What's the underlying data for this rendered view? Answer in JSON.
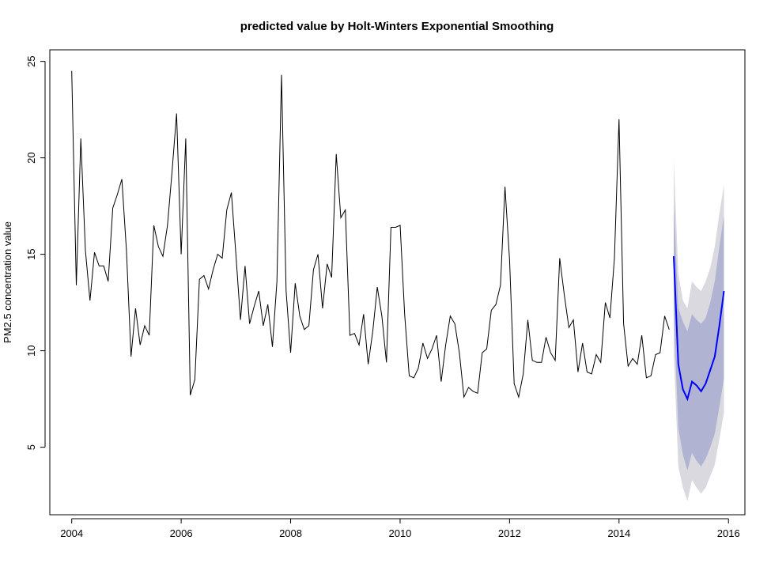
{
  "chart_data": {
    "type": "line",
    "title": "predicted value by Holt-Winters Exponential Smoothing",
    "xlabel": "",
    "ylabel": "PM2.5 concentration value",
    "xlim": [
      2003.6,
      2016.3
    ],
    "ylim": [
      1.5,
      25.6
    ],
    "x_ticks": [
      2004,
      2006,
      2008,
      2010,
      2012,
      2014,
      2016
    ],
    "y_ticks": [
      5,
      10,
      15,
      20,
      25
    ],
    "grid": false,
    "legend": "none",
    "colors": {
      "observed": "#000000",
      "forecast": "#0000ff",
      "band80": "#b0b3d1",
      "band95": "#d9d9df"
    },
    "observed": {
      "start": 2004,
      "frequency": 12,
      "values": [
        24.5,
        13.4,
        21.0,
        15.2,
        12.6,
        15.1,
        14.4,
        14.4,
        13.6,
        17.4,
        18.1,
        18.9,
        15.2,
        9.7,
        12.2,
        10.3,
        11.3,
        10.8,
        16.5,
        15.4,
        14.9,
        16.5,
        19.3,
        22.3,
        15.0,
        21.0,
        7.7,
        8.5,
        13.7,
        13.9,
        13.2,
        14.2,
        15.0,
        14.8,
        17.3,
        18.2,
        15.0,
        11.6,
        14.4,
        11.4,
        12.3,
        13.1,
        11.3,
        12.4,
        10.2,
        13.6,
        24.3,
        13.1,
        9.9,
        13.5,
        11.8,
        11.1,
        11.3,
        14.2,
        15.0,
        12.2,
        14.5,
        13.8,
        20.2,
        16.9,
        17.3,
        10.8,
        10.9,
        10.3,
        11.9,
        9.3,
        11.0,
        13.3,
        11.8,
        9.4,
        16.4,
        16.4,
        16.5,
        11.9,
        8.7,
        8.6,
        9.1,
        10.4,
        9.6,
        10.1,
        10.8,
        8.4,
        10.3,
        11.8,
        11.4,
        9.9,
        7.6,
        8.1,
        7.9,
        7.8,
        9.9,
        10.1,
        12.1,
        12.4,
        13.4,
        18.5,
        14.7,
        8.3,
        7.6,
        8.8,
        11.6,
        9.5,
        9.4,
        9.4,
        10.7,
        9.9,
        9.5,
        14.8,
        12.9,
        11.2,
        11.6,
        8.9,
        10.4,
        8.9,
        8.8,
        9.8,
        9.4,
        12.5,
        11.7,
        14.8,
        22.0,
        11.4,
        9.2,
        9.6,
        9.3,
        10.8,
        8.6,
        8.7,
        9.8,
        9.9,
        11.8,
        11.1
      ]
    },
    "forecast": {
      "start": 2015,
      "frequency": 12,
      "values": [
        14.9,
        9.3,
        8.0,
        7.5,
        8.4,
        8.2,
        7.9,
        8.3,
        9.0,
        9.7,
        11.3,
        13.1
      ],
      "lo80": [
        11.9,
        6.0,
        4.6,
        3.8,
        4.7,
        4.3,
        4.0,
        4.4,
        5.0,
        5.7,
        7.1,
        8.6
      ],
      "hi80": [
        17.7,
        12.2,
        11.5,
        11.0,
        11.9,
        11.6,
        11.4,
        11.7,
        12.5,
        13.6,
        15.4,
        17.0
      ],
      "lo95": [
        9.9,
        4.0,
        2.9,
        2.2,
        3.3,
        2.9,
        2.6,
        2.9,
        3.5,
        4.1,
        5.4,
        6.8
      ],
      "hi95": [
        19.9,
        14.0,
        12.6,
        12.2,
        13.6,
        13.3,
        13.1,
        13.6,
        14.3,
        15.4,
        17.1,
        18.6
      ]
    }
  }
}
